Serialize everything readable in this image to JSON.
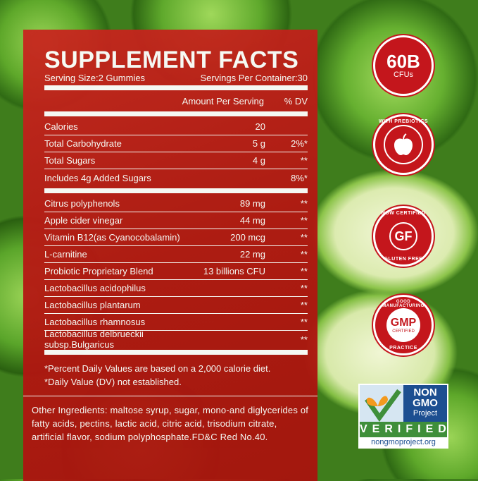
{
  "title": "SUPPLEMENT FACTS",
  "serving_size": "Serving Size:2 Gummies",
  "servings_per_container": "Servings Per Container:30",
  "header": {
    "amount": "Amount Per Serving",
    "dv": "% DV"
  },
  "rows": [
    {
      "name": "Calories",
      "amount": "20",
      "dv": ""
    },
    {
      "name": "Total Carbohydrate",
      "amount": "5 g",
      "dv": "2%*"
    },
    {
      "name": "Total Sugars",
      "amount": "4 g",
      "dv": "**"
    },
    {
      "name": "Includes 4g Added Sugars",
      "amount": "",
      "dv": "8%*"
    }
  ],
  "rows2": [
    {
      "name": "Citrus polyphenols",
      "amount": "89 mg",
      "dv": "**"
    },
    {
      "name": "Apple cider vinegar",
      "amount": "44 mg",
      "dv": "**"
    },
    {
      "name": "Vitamin B12(as Cyanocobalamin)",
      "amount": "200 mcg",
      "dv": "**"
    },
    {
      "name": "L-carnitine",
      "amount": "22 mg",
      "dv": "**"
    },
    {
      "name": "Probiotic Proprietary Blend",
      "amount": "13 billions CFU",
      "dv": "**"
    },
    {
      "name": "Lactobacillus acidophilus",
      "amount": "",
      "dv": "**"
    },
    {
      "name": "Lactobacillus plantarum",
      "amount": "",
      "dv": "**"
    },
    {
      "name": "Lactobacillus rhamnosus",
      "amount": "",
      "dv": "**"
    },
    {
      "name": "Lactobacillus delbrueckii subsp.Bulgaricus",
      "amount": "",
      "dv": "**"
    }
  ],
  "footnotes": [
    "*Percent Daily Values are based on a 2,000 calorie diet.",
    "*Daily Value (DV) not established."
  ],
  "other_ingredients": "Other Ingredients: maltose syrup, sugar, mono-and diglycerides of fatty acids, pectins, lactic acid, citric acid, trisodium citrate, artificial flavor, sodium polyphosphate.FD&C Red No.40.",
  "badges": {
    "cfu": {
      "big": "60B",
      "small": "CFUs"
    },
    "prebiotics": {
      "text": "WITH PREBIOTICS",
      "icon": "apple-icon"
    },
    "gluten": {
      "top": "NOW CERTIFIED",
      "center": "GF",
      "bottom": "GLUTEN FREE"
    },
    "gmp": {
      "top": "GOOD MANUFACTURING",
      "center": "GMP",
      "sub": "CERTIFIED",
      "bottom": "PRACTICE"
    },
    "nongmo": {
      "line1": "NON",
      "line2": "GMO",
      "line3": "Project",
      "verified": "VERIFIED",
      "url": "nongmoproject.org"
    }
  },
  "colors": {
    "panel": "#b81a14",
    "badge": "#c4161c",
    "nongmo_blue": "#1d4f91",
    "nongmo_green": "#3f8f3a"
  }
}
